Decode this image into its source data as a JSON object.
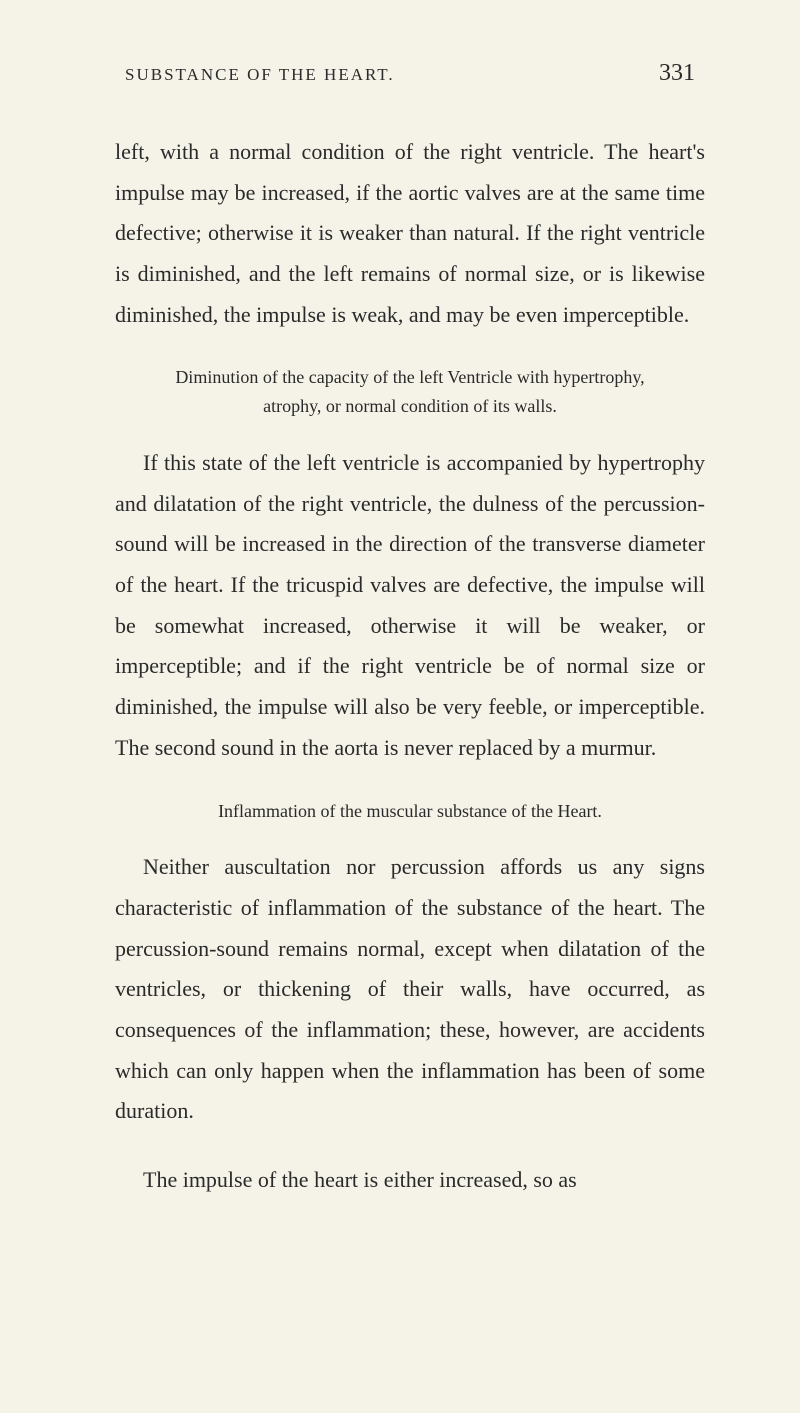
{
  "page": {
    "running_head": "SUBSTANCE OF THE HEART.",
    "number": "331"
  },
  "paragraphs": {
    "p1": "left, with a normal condition of the right ventricle. The heart's impulse may be increased, if the aortic valves are at the same time defective; otherwise it is weaker than natural. If the right ventricle is diminished, and the left remains of normal size, or is likewise diminished, the impulse is weak, and may be even imperceptible.",
    "h1": "Diminution of the capacity of the left Ventricle with hypertrophy, atrophy, or normal condition of its walls.",
    "p2": "If this state of the left ventricle is accompanied by hypertrophy and dilatation of the right ventricle, the dulness of the percussion-sound will be increased in the direction of the transverse diameter of the heart. If the tricuspid valves are defective, the impulse will be somewhat increased, otherwise it will be weaker, or imperceptible; and if the right ventricle be of normal size or diminished, the impulse will also be very feeble, or imperceptible. The second sound in the aorta is never replaced by a murmur.",
    "h2": "Inflammation of the muscular substance of the Heart.",
    "p3": "Neither auscultation nor percussion affords us any signs characteristic of inflammation of the substance of the heart. The percussion-sound remains normal, except when dilatation of the ventricles, or thickening of their walls, have occurred, as consequences of the inflammation; these, however, are accidents which can only happen when the inflammation has been of some duration.",
    "p4": "The impulse of the heart is either increased, so as"
  },
  "colors": {
    "background": "#f5f2e8",
    "text": "#2a2a2a"
  },
  "typography": {
    "body_fontsize": 22,
    "heading_fontsize": 18,
    "page_number_fontsize": 24,
    "running_head_fontsize": 17,
    "line_height": 1.85,
    "font_family": "Georgia, Times New Roman, serif"
  }
}
